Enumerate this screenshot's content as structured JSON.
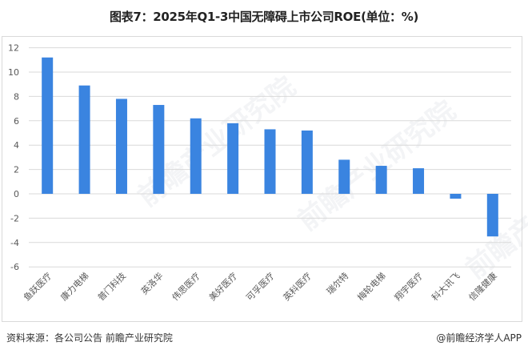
{
  "header": {
    "title": "图表7：2025年Q1-3中国无障碍上市公司ROE(单位：%)"
  },
  "footer": {
    "source": "资料来源：各公司公告 前瞻产业研究院",
    "brand": "@前瞻经济学人APP"
  },
  "watermark": {
    "text": "前瞻产业研究院"
  },
  "colors": {
    "bar": "#3A84E0",
    "grid": "#d9d9d9",
    "axis_text": "#595959",
    "frame": "#d9d9d9"
  },
  "chart_data": {
    "type": "bar",
    "title": "图表7：2025年Q1-3中国无障碍上市公司ROE(单位：%)",
    "xlabel": "",
    "ylabel": "",
    "ylim": [
      -6,
      12
    ],
    "yticks": [
      12,
      10,
      8,
      6,
      4,
      2,
      0,
      -2,
      -4,
      -6
    ],
    "grid": true,
    "legend": "none",
    "categories": [
      "鱼跃医疗",
      "康力电梯",
      "普门科技",
      "英洛华",
      "伟思医疗",
      "美好医疗",
      "可孚医疗",
      "英科医疗",
      "瑞尔特",
      "梅轮电梯",
      "翔宇医疗",
      "科大讯飞",
      "信隆健康"
    ],
    "series": [
      {
        "name": "ROE",
        "values": [
          11.2,
          8.9,
          7.8,
          7.3,
          6.2,
          5.8,
          5.3,
          5.2,
          2.8,
          2.3,
          2.1,
          -0.4,
          -3.5
        ]
      }
    ]
  }
}
